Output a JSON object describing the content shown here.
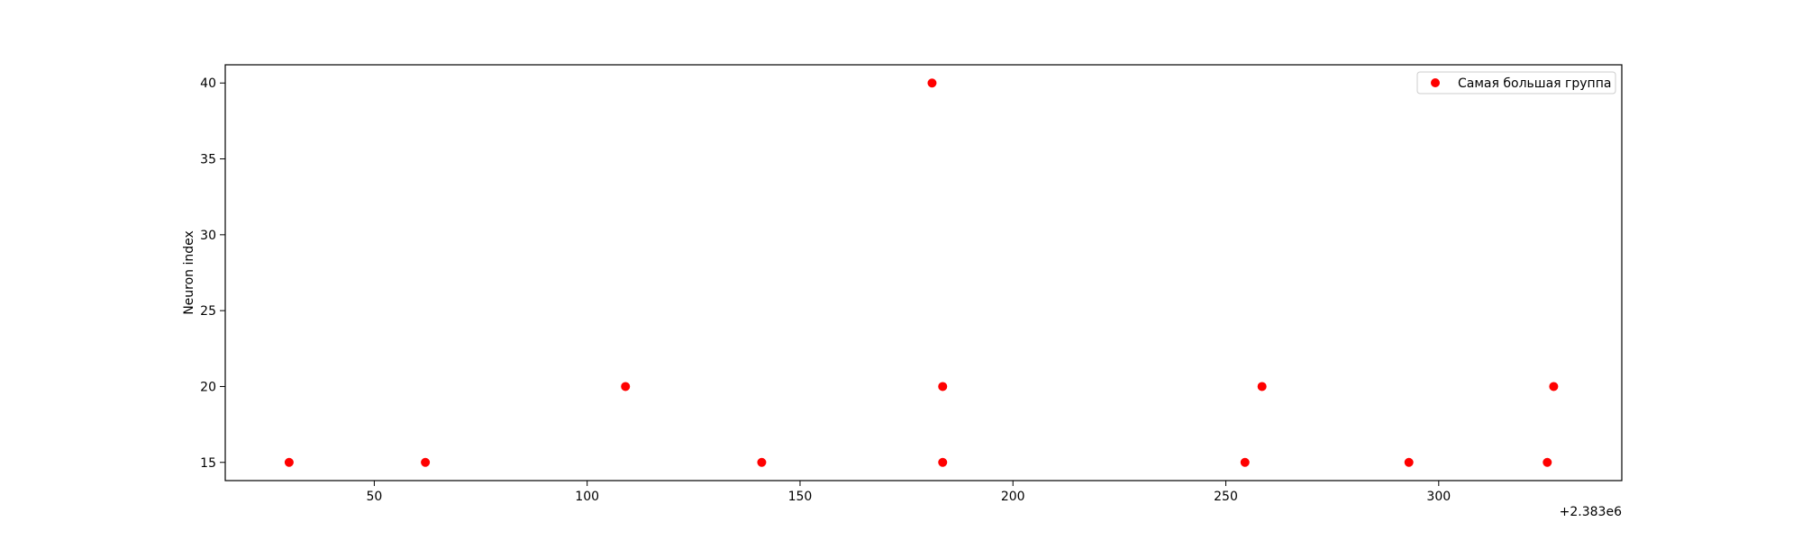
{
  "chart_data": {
    "type": "scatter",
    "title": "",
    "xlabel": "",
    "ylabel": "Neuron index",
    "x_offset_label": "+2.383e6",
    "x_offset": 2383000,
    "xlim": [
      2383015,
      2383343
    ],
    "ylim": [
      13.8,
      41.2
    ],
    "xticks": [
      {
        "value": 2383050,
        "label": "50"
      },
      {
        "value": 2383100,
        "label": "100"
      },
      {
        "value": 2383150,
        "label": "150"
      },
      {
        "value": 2383200,
        "label": "200"
      },
      {
        "value": 2383250,
        "label": "250"
      },
      {
        "value": 2383300,
        "label": "300"
      }
    ],
    "yticks": [
      {
        "value": 15,
        "label": "15"
      },
      {
        "value": 20,
        "label": "20"
      },
      {
        "value": 25,
        "label": "25"
      },
      {
        "value": 30,
        "label": "30"
      },
      {
        "value": 35,
        "label": "35"
      },
      {
        "value": 40,
        "label": "40"
      }
    ],
    "grid": false,
    "legend_position": "top-right",
    "series": [
      {
        "name": "Самая большая группа",
        "color": "#ff0000",
        "marker": "circle",
        "x": [
          2383030,
          2383062,
          2383109,
          2383141,
          2383181,
          2383183.5,
          2383183.5,
          2383254.5,
          2383258.5,
          2383293,
          2383325.5,
          2383327
        ],
        "y": [
          15,
          15,
          20,
          15,
          40,
          20,
          15,
          15,
          20,
          15,
          15,
          20
        ]
      }
    ]
  }
}
